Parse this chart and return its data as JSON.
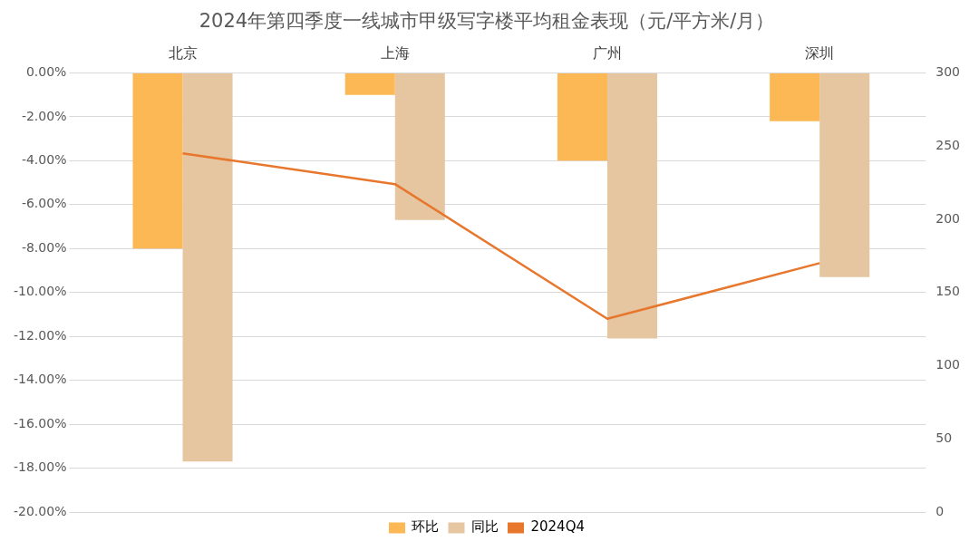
{
  "chart_data": {
    "type": "bar",
    "title": "2024年第四季度一线城市甲级写字楼平均租金表现（元/平方米/月）",
    "categories": [
      "北京",
      "上海",
      "广州",
      "深圳"
    ],
    "series": [
      {
        "name": "环比",
        "color": "#fbb854",
        "values": [
          -8.0,
          -1.0,
          -4.0,
          -2.2
        ]
      },
      {
        "name": "同比",
        "color": "#e6c6a1",
        "values": [
          -17.7,
          -6.7,
          -12.1,
          -9.3
        ]
      },
      {
        "name": "2024Q4",
        "type": "line",
        "axis": "y2",
        "color": "#e8772e",
        "marker": "none",
        "values": [
          245,
          224,
          132,
          170
        ]
      }
    ],
    "ylim": [
      -20,
      0
    ],
    "yticks": [
      {
        "value": -20,
        "label": "-20.00%"
      },
      {
        "value": -18,
        "label": "-18.00%"
      },
      {
        "value": -16,
        "label": "-16.00%"
      },
      {
        "value": -14,
        "label": "-14.00%"
      },
      {
        "value": -12,
        "label": "-12.00%"
      },
      {
        "value": -10,
        "label": "-10.00%"
      },
      {
        "value": -8,
        "label": "-8.00%"
      },
      {
        "value": -6,
        "label": "-6.00%"
      },
      {
        "value": -4,
        "label": "-4.00%"
      },
      {
        "value": -2,
        "label": "-2.00%"
      },
      {
        "value": 0,
        "label": "0.00%"
      }
    ],
    "y2lim": [
      0,
      300
    ],
    "y2ticks": [
      0,
      50,
      100,
      150,
      200,
      250,
      300
    ],
    "grid": "y",
    "legend": "bottom"
  }
}
